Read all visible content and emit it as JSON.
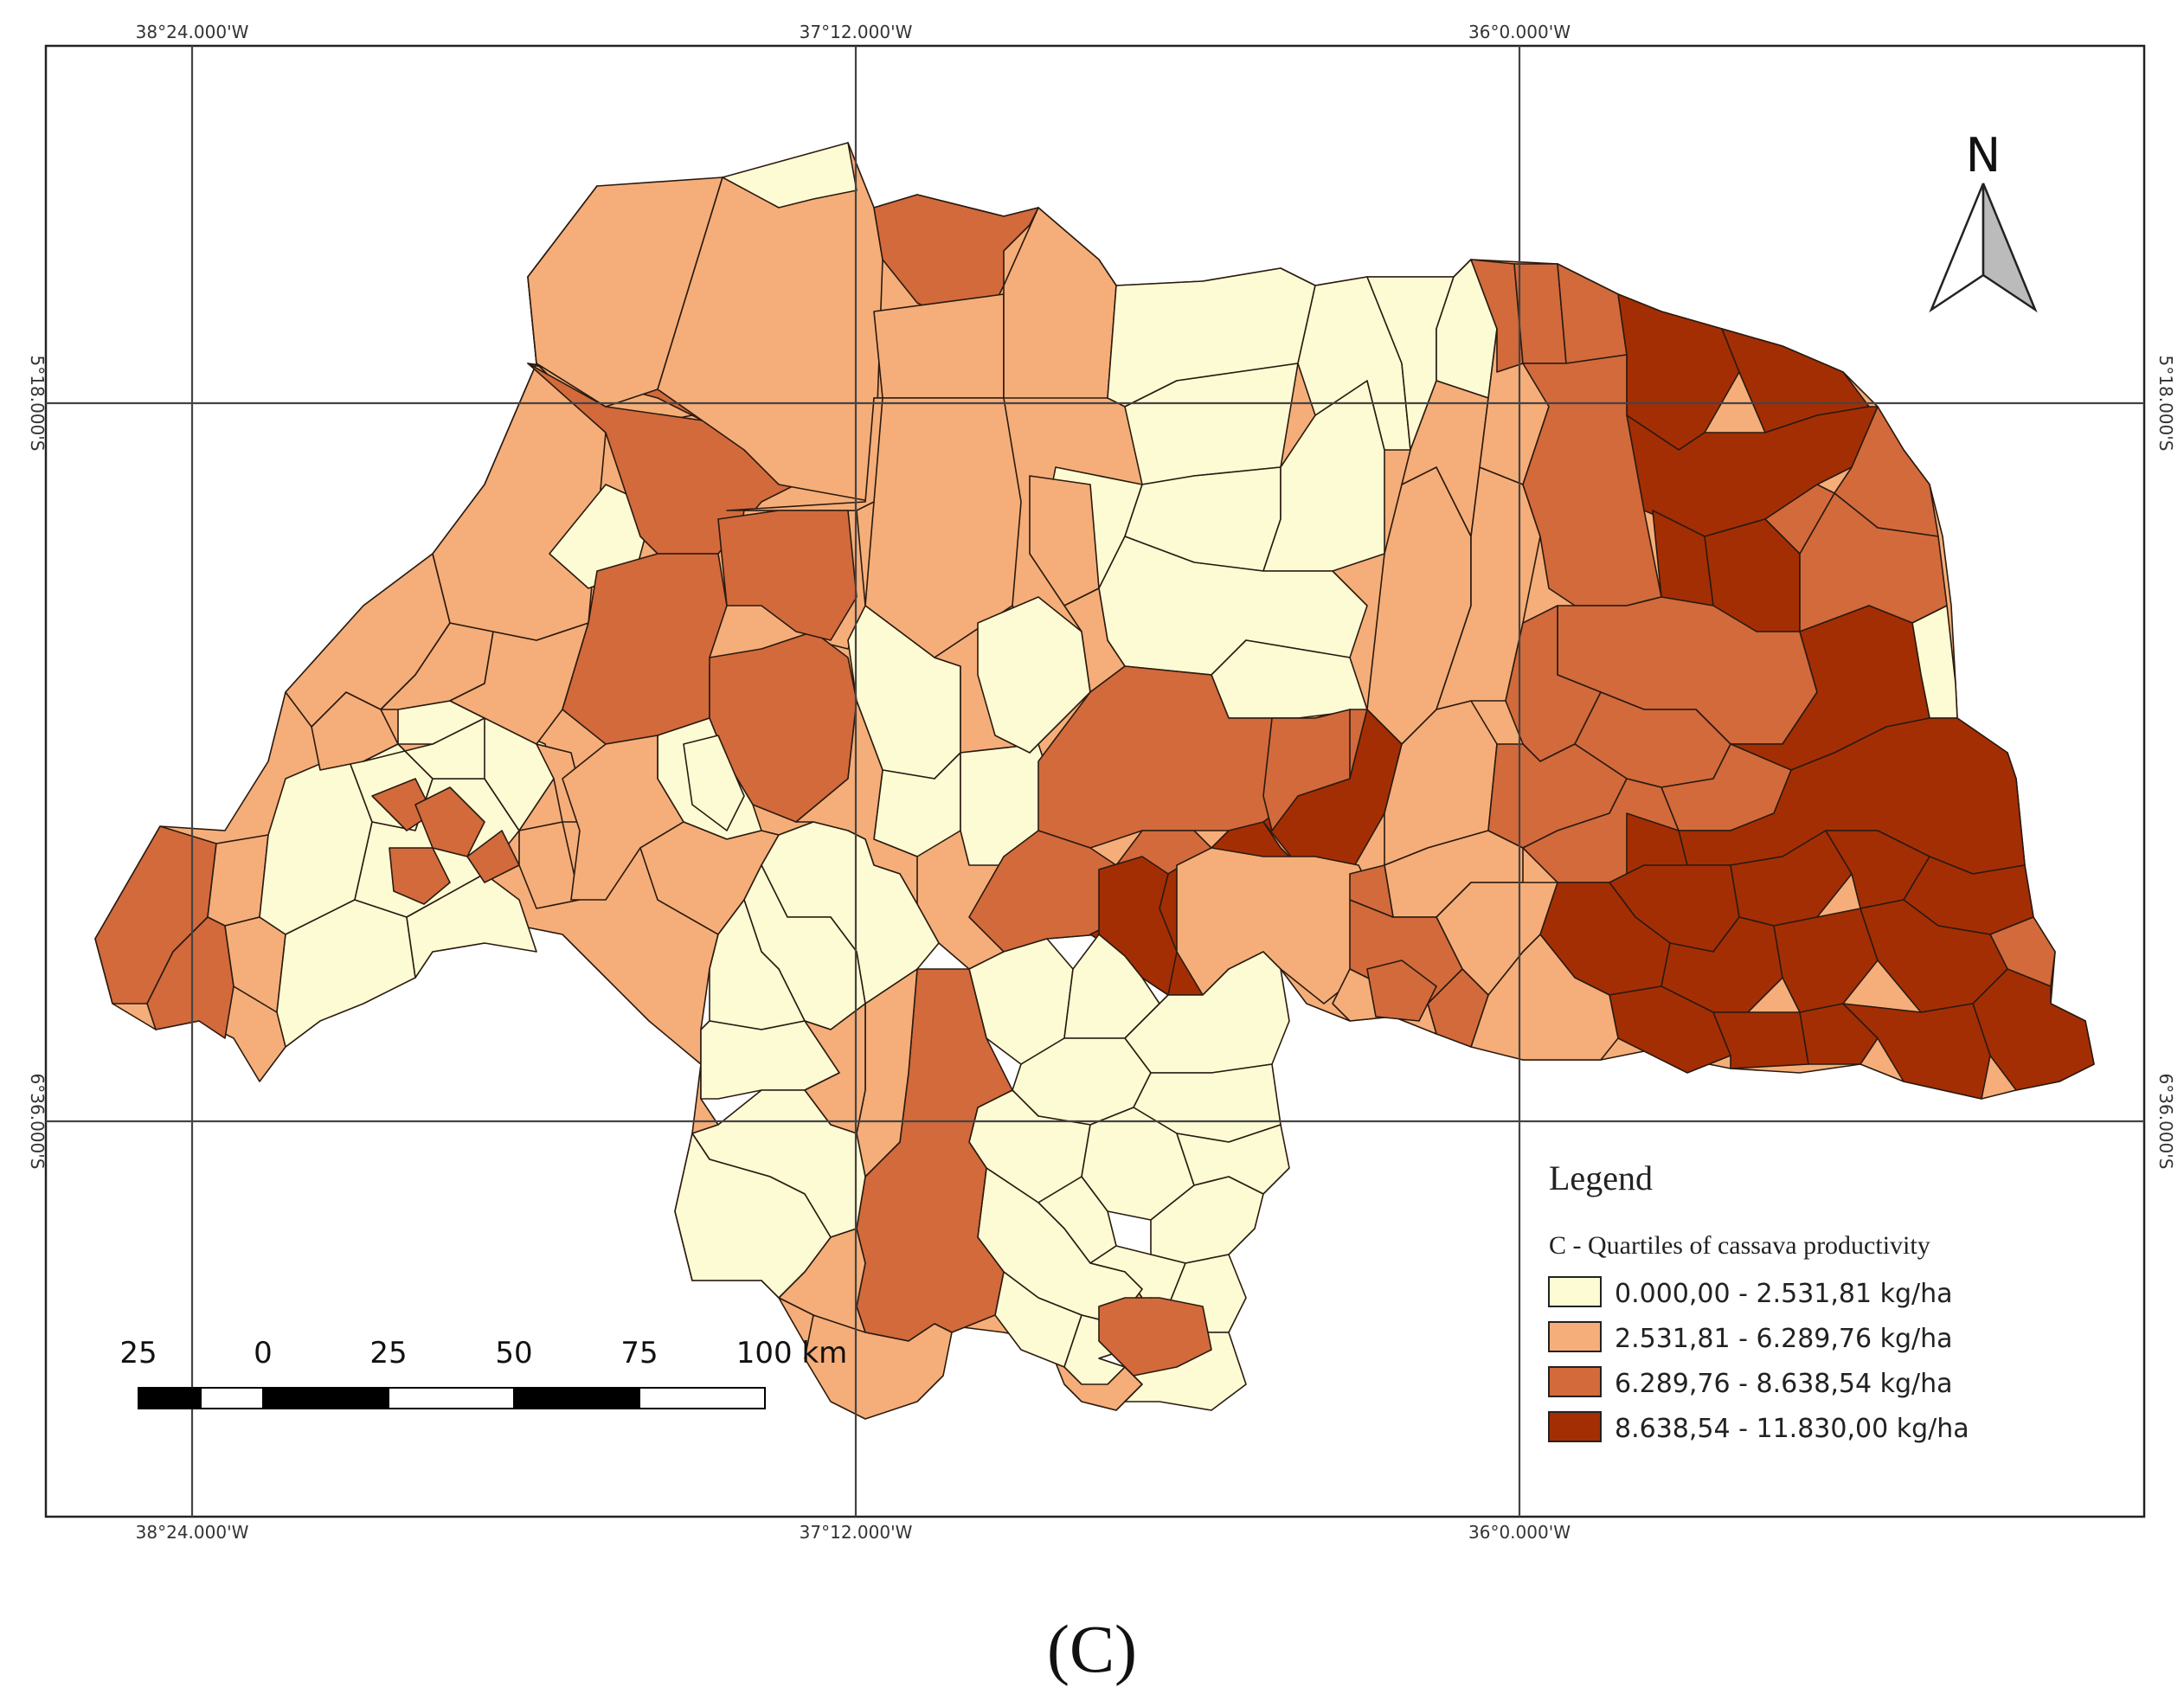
{
  "map": {
    "colors": {
      "q1": "#fdfbd4",
      "q2": "#f5ae79",
      "q3": "#d26a3c",
      "q4": "#a42e04",
      "frame": "#222222",
      "grid": "#555555"
    },
    "grid_labels": {
      "top": [
        "38°24.000'W",
        "37°12.000'W",
        "36°0.000'W"
      ],
      "bottom": [
        "38°24.000'W",
        "37°12.000'W",
        "36°0.000'W"
      ],
      "left": [
        "5°18.000'S",
        "6°36.000'S"
      ],
      "right": [
        "5°18.000'S",
        "6°36.000'S"
      ]
    },
    "north_label": "N",
    "scale_bar": {
      "labels": [
        "25",
        "0",
        "25",
        "50",
        "75",
        "100 km"
      ]
    },
    "legend": {
      "title": "Legend",
      "subtitle": "C - Quartiles of cassava productivity",
      "items": [
        {
          "label": "0.000,00 - 2.531,81 kg/ha",
          "class": "q1"
        },
        {
          "label": "2.531,81 - 6.289,76 kg/ha",
          "class": "q2"
        },
        {
          "label": "6.289,76  - 8.638,54 kg/ha",
          "class": "q3"
        },
        {
          "label": "8.638,54 - 11.830,00 kg/ha",
          "class": "q4"
        }
      ]
    },
    "panel_label": "(C)"
  }
}
